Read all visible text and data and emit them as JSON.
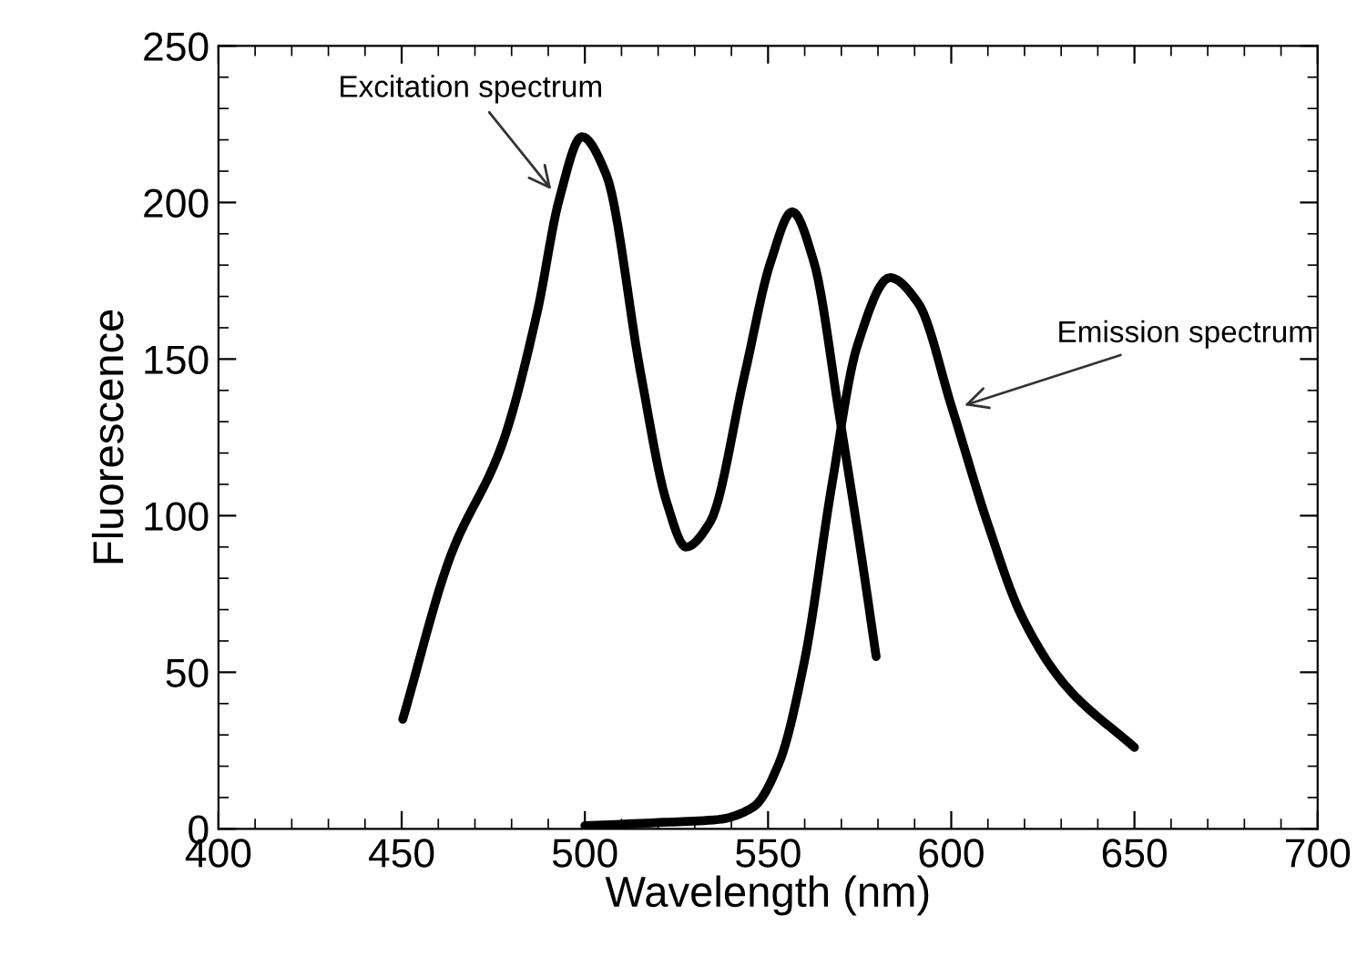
{
  "chart_data": {
    "type": "line",
    "xlabel": "Wavelength (nm)",
    "ylabel": "Fluorescence",
    "xlim": [
      400,
      700
    ],
    "xticks": [
      400,
      450,
      500,
      550,
      600,
      650,
      700
    ],
    "ylim": [
      0,
      250
    ],
    "yticks": [
      0,
      50,
      100,
      150,
      200,
      250
    ],
    "grid": false,
    "legend": false,
    "marker": "none",
    "line_style": "solid",
    "series": [
      {
        "color": "#000000",
        "x": [
          450.3,
          463.3,
          477.5,
          487,
          493,
          499.2,
          505.8,
          515.3,
          522.4,
          527.6,
          534.2,
          543.6,
          550.7,
          556.6,
          562.5,
          569.6,
          575.5,
          579.5
        ],
        "values": [
          35,
          87,
          123,
          165,
          201,
          221,
          209,
          145,
          104,
          90,
          98,
          145,
          181,
          197,
          181,
          131,
          87,
          55
        ]
      },
      {
        "color": "#000000",
        "x": [
          500,
          520,
          536.5,
          546,
          553,
          560,
          567.3,
          574.3,
          583.3,
          590.9,
          600.3,
          609.8,
          619.2,
          631,
          650
        ],
        "values": [
          1,
          2,
          3,
          7,
          21,
          54,
          109,
          154,
          176,
          168,
          134,
          98,
          68,
          46,
          26
        ]
      }
    ],
    "annotations": [
      {
        "text": "Excitation spectrum",
        "x": 493,
        "y": 201
      },
      {
        "text": "Emission spectrum",
        "x": 600.3,
        "y": 134
      }
    ]
  }
}
